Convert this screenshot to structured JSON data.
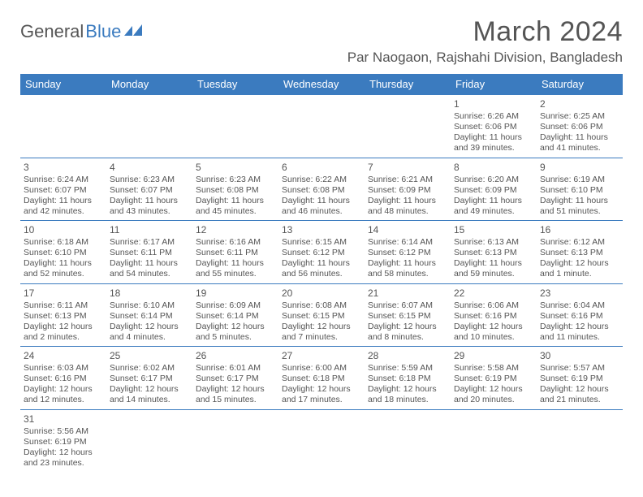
{
  "logo": {
    "part1": "General",
    "part2": "Blue"
  },
  "title": {
    "month": "March 2024",
    "location": "Par Naogaon, Rajshahi Division, Bangladesh"
  },
  "header_bg": "#3b7bbf",
  "weekdays": [
    "Sunday",
    "Monday",
    "Tuesday",
    "Wednesday",
    "Thursday",
    "Friday",
    "Saturday"
  ],
  "weeks": [
    [
      null,
      null,
      null,
      null,
      null,
      {
        "d": "1",
        "sr": "Sunrise: 6:26 AM",
        "ss": "Sunset: 6:06 PM",
        "dl1": "Daylight: 11 hours",
        "dl2": "and 39 minutes."
      },
      {
        "d": "2",
        "sr": "Sunrise: 6:25 AM",
        "ss": "Sunset: 6:06 PM",
        "dl1": "Daylight: 11 hours",
        "dl2": "and 41 minutes."
      }
    ],
    [
      {
        "d": "3",
        "sr": "Sunrise: 6:24 AM",
        "ss": "Sunset: 6:07 PM",
        "dl1": "Daylight: 11 hours",
        "dl2": "and 42 minutes."
      },
      {
        "d": "4",
        "sr": "Sunrise: 6:23 AM",
        "ss": "Sunset: 6:07 PM",
        "dl1": "Daylight: 11 hours",
        "dl2": "and 43 minutes."
      },
      {
        "d": "5",
        "sr": "Sunrise: 6:23 AM",
        "ss": "Sunset: 6:08 PM",
        "dl1": "Daylight: 11 hours",
        "dl2": "and 45 minutes."
      },
      {
        "d": "6",
        "sr": "Sunrise: 6:22 AM",
        "ss": "Sunset: 6:08 PM",
        "dl1": "Daylight: 11 hours",
        "dl2": "and 46 minutes."
      },
      {
        "d": "7",
        "sr": "Sunrise: 6:21 AM",
        "ss": "Sunset: 6:09 PM",
        "dl1": "Daylight: 11 hours",
        "dl2": "and 48 minutes."
      },
      {
        "d": "8",
        "sr": "Sunrise: 6:20 AM",
        "ss": "Sunset: 6:09 PM",
        "dl1": "Daylight: 11 hours",
        "dl2": "and 49 minutes."
      },
      {
        "d": "9",
        "sr": "Sunrise: 6:19 AM",
        "ss": "Sunset: 6:10 PM",
        "dl1": "Daylight: 11 hours",
        "dl2": "and 51 minutes."
      }
    ],
    [
      {
        "d": "10",
        "sr": "Sunrise: 6:18 AM",
        "ss": "Sunset: 6:10 PM",
        "dl1": "Daylight: 11 hours",
        "dl2": "and 52 minutes."
      },
      {
        "d": "11",
        "sr": "Sunrise: 6:17 AM",
        "ss": "Sunset: 6:11 PM",
        "dl1": "Daylight: 11 hours",
        "dl2": "and 54 minutes."
      },
      {
        "d": "12",
        "sr": "Sunrise: 6:16 AM",
        "ss": "Sunset: 6:11 PM",
        "dl1": "Daylight: 11 hours",
        "dl2": "and 55 minutes."
      },
      {
        "d": "13",
        "sr": "Sunrise: 6:15 AM",
        "ss": "Sunset: 6:12 PM",
        "dl1": "Daylight: 11 hours",
        "dl2": "and 56 minutes."
      },
      {
        "d": "14",
        "sr": "Sunrise: 6:14 AM",
        "ss": "Sunset: 6:12 PM",
        "dl1": "Daylight: 11 hours",
        "dl2": "and 58 minutes."
      },
      {
        "d": "15",
        "sr": "Sunrise: 6:13 AM",
        "ss": "Sunset: 6:13 PM",
        "dl1": "Daylight: 11 hours",
        "dl2": "and 59 minutes."
      },
      {
        "d": "16",
        "sr": "Sunrise: 6:12 AM",
        "ss": "Sunset: 6:13 PM",
        "dl1": "Daylight: 12 hours",
        "dl2": "and 1 minute."
      }
    ],
    [
      {
        "d": "17",
        "sr": "Sunrise: 6:11 AM",
        "ss": "Sunset: 6:13 PM",
        "dl1": "Daylight: 12 hours",
        "dl2": "and 2 minutes."
      },
      {
        "d": "18",
        "sr": "Sunrise: 6:10 AM",
        "ss": "Sunset: 6:14 PM",
        "dl1": "Daylight: 12 hours",
        "dl2": "and 4 minutes."
      },
      {
        "d": "19",
        "sr": "Sunrise: 6:09 AM",
        "ss": "Sunset: 6:14 PM",
        "dl1": "Daylight: 12 hours",
        "dl2": "and 5 minutes."
      },
      {
        "d": "20",
        "sr": "Sunrise: 6:08 AM",
        "ss": "Sunset: 6:15 PM",
        "dl1": "Daylight: 12 hours",
        "dl2": "and 7 minutes."
      },
      {
        "d": "21",
        "sr": "Sunrise: 6:07 AM",
        "ss": "Sunset: 6:15 PM",
        "dl1": "Daylight: 12 hours",
        "dl2": "and 8 minutes."
      },
      {
        "d": "22",
        "sr": "Sunrise: 6:06 AM",
        "ss": "Sunset: 6:16 PM",
        "dl1": "Daylight: 12 hours",
        "dl2": "and 10 minutes."
      },
      {
        "d": "23",
        "sr": "Sunrise: 6:04 AM",
        "ss": "Sunset: 6:16 PM",
        "dl1": "Daylight: 12 hours",
        "dl2": "and 11 minutes."
      }
    ],
    [
      {
        "d": "24",
        "sr": "Sunrise: 6:03 AM",
        "ss": "Sunset: 6:16 PM",
        "dl1": "Daylight: 12 hours",
        "dl2": "and 12 minutes."
      },
      {
        "d": "25",
        "sr": "Sunrise: 6:02 AM",
        "ss": "Sunset: 6:17 PM",
        "dl1": "Daylight: 12 hours",
        "dl2": "and 14 minutes."
      },
      {
        "d": "26",
        "sr": "Sunrise: 6:01 AM",
        "ss": "Sunset: 6:17 PM",
        "dl1": "Daylight: 12 hours",
        "dl2": "and 15 minutes."
      },
      {
        "d": "27",
        "sr": "Sunrise: 6:00 AM",
        "ss": "Sunset: 6:18 PM",
        "dl1": "Daylight: 12 hours",
        "dl2": "and 17 minutes."
      },
      {
        "d": "28",
        "sr": "Sunrise: 5:59 AM",
        "ss": "Sunset: 6:18 PM",
        "dl1": "Daylight: 12 hours",
        "dl2": "and 18 minutes."
      },
      {
        "d": "29",
        "sr": "Sunrise: 5:58 AM",
        "ss": "Sunset: 6:19 PM",
        "dl1": "Daylight: 12 hours",
        "dl2": "and 20 minutes."
      },
      {
        "d": "30",
        "sr": "Sunrise: 5:57 AM",
        "ss": "Sunset: 6:19 PM",
        "dl1": "Daylight: 12 hours",
        "dl2": "and 21 minutes."
      }
    ],
    [
      {
        "d": "31",
        "sr": "Sunrise: 5:56 AM",
        "ss": "Sunset: 6:19 PM",
        "dl1": "Daylight: 12 hours",
        "dl2": "and 23 minutes."
      },
      null,
      null,
      null,
      null,
      null,
      null
    ]
  ]
}
